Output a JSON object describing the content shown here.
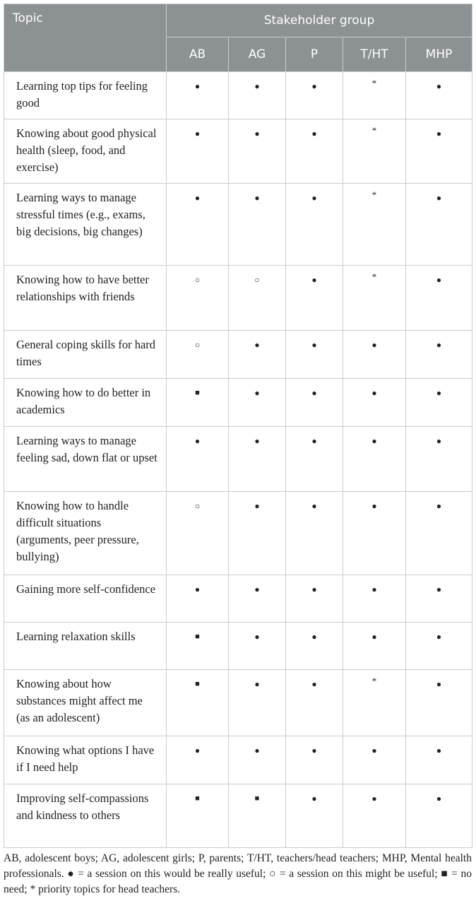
{
  "header": {
    "topic": "Topic",
    "group": "Stakeholder group",
    "columns": [
      "AB",
      "AG",
      "P",
      "T/HT",
      "MHP"
    ]
  },
  "rows": [
    {
      "topic": "Learning top tips for feeling good",
      "values": [
        "●",
        "●",
        "●",
        "*",
        "●"
      ]
    },
    {
      "topic": "Knowing about good physical health (sleep, food, and exercise)",
      "values": [
        "●",
        "●",
        "●",
        "*",
        "●"
      ]
    },
    {
      "topic": "Learning ways to manage stressful times (e.g., exams, big decisions, big changes)",
      "values": [
        "●",
        "●",
        "●",
        "*",
        "●"
      ]
    },
    {
      "topic": "Knowing how to have better relationships with friends",
      "values": [
        "○",
        "○",
        "●",
        "*",
        "●"
      ]
    },
    {
      "topic": "General coping skills for hard times",
      "values": [
        "○",
        "●",
        "●",
        "●",
        "●"
      ]
    },
    {
      "topic": "Knowing how to do better in academics",
      "values": [
        "■",
        "●",
        "●",
        "●",
        "●"
      ]
    },
    {
      "topic": "Learning ways to manage feeling sad, down flat or upset",
      "values": [
        "●",
        "●",
        "●",
        "●",
        "●"
      ]
    },
    {
      "topic": "Knowing how to handle difficult situations (arguments, peer pressure, bullying)",
      "values": [
        "○",
        "●",
        "●",
        "●",
        "●"
      ]
    },
    {
      "topic": "Gaining more self-confidence",
      "values": [
        "●",
        "●",
        "●",
        "●",
        "●"
      ]
    },
    {
      "topic": "Learning relaxation skills",
      "values": [
        "■",
        "●",
        "●",
        "●",
        "●"
      ]
    },
    {
      "topic": "Knowing about how substances might affect me (as an adolescent)",
      "values": [
        "■",
        "●",
        "●",
        "*",
        "●"
      ]
    },
    {
      "topic": "Knowing what options I have if I need help",
      "values": [
        "●",
        "●",
        "●",
        "●",
        "●"
      ]
    },
    {
      "topic": "Improving self-compassions and kindness to others",
      "values": [
        "■",
        "■",
        "●",
        "●",
        "●"
      ]
    }
  ],
  "footnote": "AB, adolescent boys; AG, adolescent girls; P, parents; T/HT, teachers/head teachers; MHP, Mental health professionals. ● = a session on this would be really useful; ○ = a session on this might be useful; ■ = no need; * priority topics for head teachers.",
  "colors": {
    "header_bg": "#8c9193",
    "border": "#c9cccd"
  }
}
